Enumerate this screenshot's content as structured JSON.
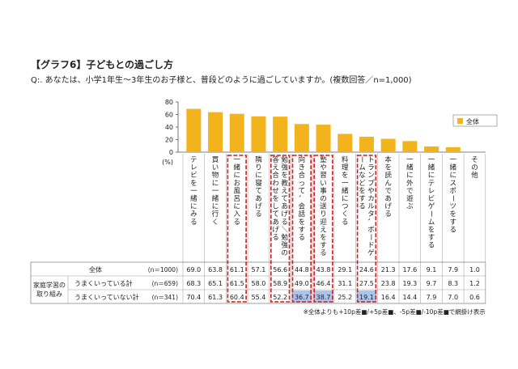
{
  "title": "【グラフ6】子どもとの過ごし方",
  "question": "Q:. あなたは、小学1年生～3年生のお子様と、普段どのように過ごしていますか。(複数回答／n=1,000)",
  "chart_data": {
    "type": "bar",
    "ylim": [
      0,
      80
    ],
    "yticks": [
      "80",
      "60",
      "40",
      "20",
      "0"
    ],
    "unit_label": "(%)",
    "legend": "全体",
    "categories": [
      "テレビを一緒にみる",
      "買い物に一緒に行く",
      "一緒にお風呂に入る",
      "隣りに寝てあげる",
      "勉強を教えてあげる／勉強の答え合わせをしてあげる",
      "向き合って、会話をする",
      "塾や習い事の送り迎えをする",
      "料理を一緒につくる",
      "トランプやカルタ、ボードゲームなどをする",
      "本を読んであげる",
      "一緒に外で遊ぶ",
      "一緒にテレビゲームをする",
      "一緒にスポーツをする",
      "その他"
    ],
    "series": [
      {
        "name": "全体",
        "n": "(n＝1000)",
        "values": [
          "69.0",
          "63.8",
          "61.1",
          "57.1",
          "56.6",
          "44.8",
          "43.8",
          "29.1",
          "24.6",
          "21.3",
          "17.6",
          "9.1",
          "7.9",
          "1.0"
        ]
      },
      {
        "name": "うまくいっている計",
        "n": "(n＝659)",
        "values": [
          "68.3",
          "65.1",
          "61.5",
          "58.0",
          "58.9",
          "49.0",
          "46.4",
          "31.1",
          "27.5",
          "23.8",
          "19.3",
          "9.7",
          "8.3",
          "1.2"
        ]
      },
      {
        "name": "うまくいっていない計",
        "n": "(n＝341)",
        "values": [
          "70.4",
          "61.3",
          "60.4",
          "55.4",
          "52.2",
          "36.7",
          "38.7",
          "25.2",
          "19.1",
          "16.4",
          "14.4",
          "7.9",
          "7.0",
          "0.6"
        ]
      }
    ],
    "highlighted_cells": [
      [
        2,
        5
      ],
      [
        2,
        6
      ],
      [
        2,
        8
      ]
    ],
    "highlight_color": "#a9c4ee",
    "bar_color": "#f2b31c",
    "group_label": "家庭学習の\n取り組み",
    "footnote": "※全体よりも+10p差■/+5p差■、-5p差■/-10p差■で網掛け表示",
    "boxed_columns": [
      2,
      4,
      5,
      6,
      8
    ]
  }
}
